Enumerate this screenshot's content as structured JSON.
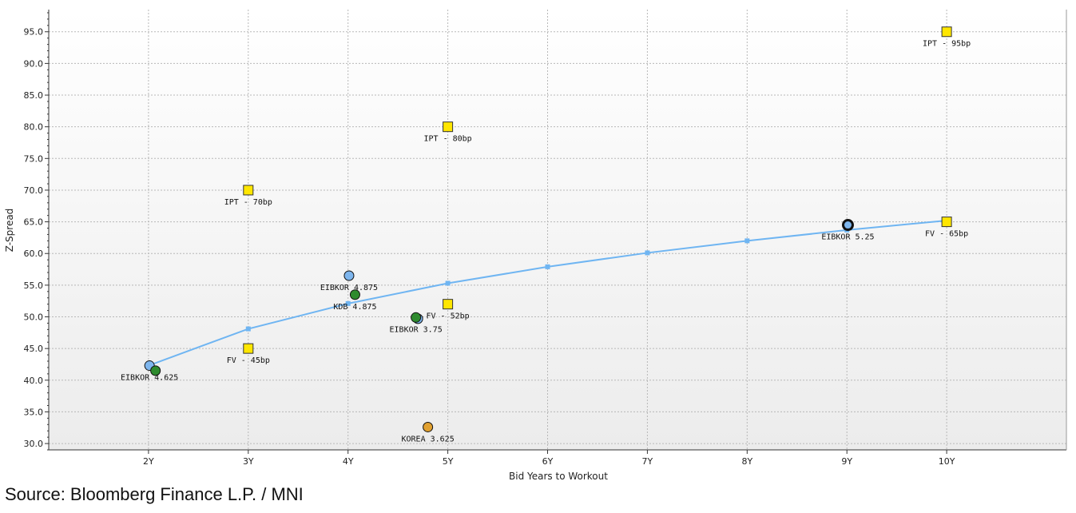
{
  "chart_data": {
    "type": "scatter",
    "title": "",
    "xlabel": "Bid Years to Workout",
    "ylabel": "Z-Spread",
    "xlim": [
      1.0,
      11.2
    ],
    "ylim": [
      29,
      98.5
    ],
    "x_ticks": [
      {
        "value": 2,
        "label": "2Y"
      },
      {
        "value": 3,
        "label": "3Y"
      },
      {
        "value": 4,
        "label": "4Y"
      },
      {
        "value": 5,
        "label": "5Y"
      },
      {
        "value": 6,
        "label": "6Y"
      },
      {
        "value": 7,
        "label": "7Y"
      },
      {
        "value": 8,
        "label": "8Y"
      },
      {
        "value": 9,
        "label": "9Y"
      },
      {
        "value": 10,
        "label": "10Y"
      }
    ],
    "y_ticks": [
      {
        "value": 30,
        "label": "30.0"
      },
      {
        "value": 35,
        "label": "35.0"
      },
      {
        "value": 40,
        "label": "40.0"
      },
      {
        "value": 45,
        "label": "45.0"
      },
      {
        "value": 50,
        "label": "50.0"
      },
      {
        "value": 55,
        "label": "55.0"
      },
      {
        "value": 60,
        "label": "60.0"
      },
      {
        "value": 65,
        "label": "65.0"
      },
      {
        "value": 70,
        "label": "70.0"
      },
      {
        "value": 75,
        "label": "75.0"
      },
      {
        "value": 80,
        "label": "80.0"
      },
      {
        "value": 85,
        "label": "85.0"
      },
      {
        "value": 90,
        "label": "90.0"
      },
      {
        "value": 95,
        "label": "95.0"
      }
    ],
    "grid": true,
    "curve": {
      "color": "#6fb5f2",
      "points": [
        [
          2.0,
          42.3
        ],
        [
          3.0,
          48.1
        ],
        [
          4.0,
          52.1
        ],
        [
          5.0,
          55.3
        ],
        [
          6.0,
          57.9
        ],
        [
          7.0,
          60.1
        ],
        [
          8.0,
          62.0
        ],
        [
          9.0,
          63.7
        ],
        [
          10.0,
          65.2
        ]
      ]
    },
    "squares": [
      {
        "name": "IPT - 70bp",
        "x": 3.0,
        "y": 70,
        "label": "IPT - 70bp"
      },
      {
        "name": "FV - 45bp",
        "x": 3.0,
        "y": 45,
        "label": "FV - 45bp"
      },
      {
        "name": "IPT - 80bp",
        "x": 5.0,
        "y": 80,
        "label": "IPT - 80bp"
      },
      {
        "name": "FV - 52bp",
        "x": 5.0,
        "y": 52,
        "label": "FV - 52bp"
      },
      {
        "name": "IPT - 95bp",
        "x": 10.0,
        "y": 95,
        "label": "IPT - 95bp"
      },
      {
        "name": "FV - 65bp",
        "x": 10.0,
        "y": 65,
        "label": "FV - 65bp"
      }
    ],
    "circles": [
      {
        "name": "EIBKOR 4.625",
        "x": 2.01,
        "y": 42.3,
        "color": "#7eb6ee",
        "label": "EIBKOR 4.625",
        "labeled": true
      },
      {
        "name": "EIBKOR 4.625 green",
        "x": 2.07,
        "y": 41.5,
        "color": "#2e8b2e",
        "label": "",
        "labeled": false
      },
      {
        "name": "EIBKOR 4.875",
        "x": 4.01,
        "y": 56.5,
        "color": "#7eb6ee",
        "label": "EIBKOR 4.875",
        "labeled": true
      },
      {
        "name": "KDB 4.875",
        "x": 4.07,
        "y": 53.5,
        "color": "#2e8b2e",
        "label": "KDB 4.875",
        "labeled": true
      },
      {
        "name": "EIBKOR 3.75 blue",
        "x": 4.7,
        "y": 49.7,
        "color": "#7eb6ee",
        "label": "",
        "labeled": false
      },
      {
        "name": "EIBKOR 3.75",
        "x": 4.68,
        "y": 49.9,
        "color": "#2e8b2e",
        "label": "EIBKOR 3.75",
        "labeled": true
      },
      {
        "name": "KOREA 3.625",
        "x": 4.8,
        "y": 32.6,
        "color": "#e0a030",
        "label": "KOREA 3.625",
        "labeled": true
      },
      {
        "name": "EIBKOR 5.25",
        "x": 9.01,
        "y": 64.5,
        "color": "#7eb6ee",
        "label": "EIBKOR 5.25",
        "labeled": true,
        "thick": true
      }
    ]
  },
  "source_text": "Source: Bloomberg Finance L.P. / MNI",
  "colors": {
    "square_fill": "#ffe600",
    "grid": "#b8b8b8",
    "axis": "#333333"
  }
}
